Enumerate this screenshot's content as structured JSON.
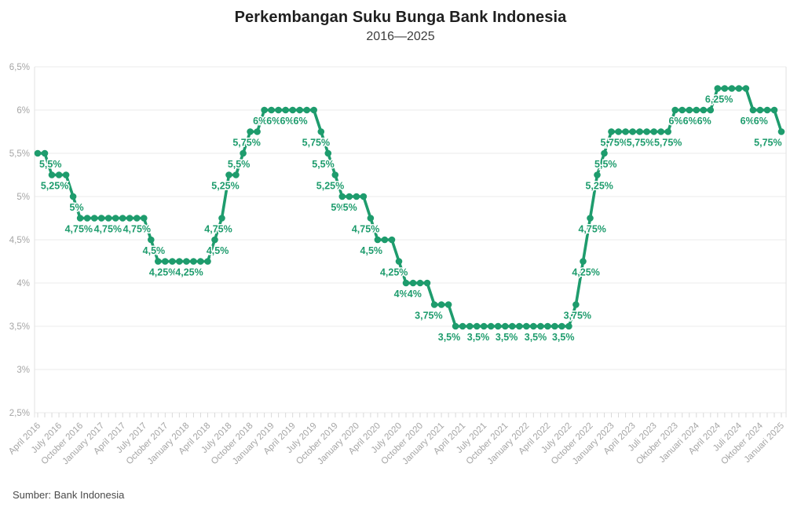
{
  "header": {
    "title": "Perkembangan Suku Bunga Bank Indonesia",
    "subtitle": "2016—2025"
  },
  "footer": {
    "source": "Sumber: Bank Indonesia"
  },
  "colors": {
    "line": "#1e9c6d",
    "data_label": "#1e9c6d",
    "axis_label": "#a5a5a5",
    "grid": "#ebebeb",
    "axis_line": "#e2e2e2",
    "tick": "#d9d9d9",
    "title": "#1f1f1f",
    "subtitle": "#3c3c3c",
    "source": "#4a4a4a",
    "background": "#ffffff"
  },
  "chart_data": {
    "type": "line",
    "title": "Perkembangan Suku Bunga Bank Indonesia",
    "subtitle": "2016—2025",
    "unit": "%",
    "ylim": [
      2.5,
      6.5
    ],
    "y_tick_values": [
      2.5,
      3,
      3.5,
      4,
      4.5,
      5,
      5.5,
      6,
      6.5
    ],
    "y_tick_labels": [
      "2,5%",
      "3%",
      "3,5%",
      "4%",
      "4,5%",
      "5%",
      "5,5%",
      "6%",
      "6,5%"
    ],
    "x_start": "April 2016",
    "x_end": "Januari 2025",
    "x_tick_every_months": 3,
    "x_tick_labels": [
      "April 2016",
      "July 2016",
      "October 2016",
      "January 2017",
      "April 2017",
      "July 2017",
      "October 2017",
      "January 2018",
      "April 2018",
      "July 2018",
      "October 2018",
      "January 2019",
      "April 2019",
      "July 2019",
      "October 2019",
      "January 2020",
      "April 2020",
      "July 2020",
      "October 2020",
      "January 2021",
      "April 2021",
      "July 2021",
      "October 2021",
      "January 2022",
      "April 2022",
      "July 2022",
      "October 2022",
      "January 2023",
      "April 2023",
      "Juli 2023",
      "Oktober 2023",
      "Januari 2024",
      "April 2024",
      "Juli 2024",
      "Oktober 2024",
      "Januari 2025"
    ],
    "grid": "horizontal",
    "legend": "none",
    "series": [
      {
        "color": "#1e9c6d",
        "values": [
          5.5,
          5.5,
          5.25,
          5.25,
          5.25,
          5,
          4.75,
          4.75,
          4.75,
          4.75,
          4.75,
          4.75,
          4.75,
          4.75,
          4.75,
          4.75,
          4.5,
          4.25,
          4.25,
          4.25,
          4.25,
          4.25,
          4.25,
          4.25,
          4.25,
          4.5,
          4.75,
          5.25,
          5.25,
          5.5,
          5.75,
          5.75,
          6,
          6,
          6,
          6,
          6,
          6,
          6,
          6,
          5.75,
          5.5,
          5.25,
          5,
          5,
          5,
          5,
          4.75,
          4.5,
          4.5,
          4.5,
          4.25,
          4,
          4,
          4,
          4,
          3.75,
          3.75,
          3.75,
          3.5,
          3.5,
          3.5,
          3.5,
          3.5,
          3.5,
          3.5,
          3.5,
          3.5,
          3.5,
          3.5,
          3.5,
          3.5,
          3.5,
          3.5,
          3.5,
          3.5,
          3.75,
          4.25,
          4.75,
          5.25,
          5.5,
          5.75,
          5.75,
          5.75,
          5.75,
          5.75,
          5.75,
          5.75,
          5.75,
          5.75,
          6,
          6,
          6,
          6,
          6,
          6,
          6.25,
          6.25,
          6.25,
          6.25,
          6.25,
          6,
          6,
          6,
          6,
          5.75
        ]
      }
    ],
    "data_labels": [
      {
        "i": 1.8,
        "v": 5.5,
        "t": "5,5%"
      },
      {
        "i": 2.4,
        "v": 5.25,
        "t": "5,25%"
      },
      {
        "i": 5.5,
        "v": 5,
        "t": "5%"
      },
      {
        "i": 5.8,
        "v": 4.75,
        "t": "4,75%"
      },
      {
        "i": 9.9,
        "v": 4.75,
        "t": "4,75%"
      },
      {
        "i": 14.0,
        "v": 4.75,
        "t": "4,75%"
      },
      {
        "i": 16.4,
        "v": 4.5,
        "t": "4,5%"
      },
      {
        "i": 17.7,
        "v": 4.25,
        "t": "4,25%"
      },
      {
        "i": 21.4,
        "v": 4.25,
        "t": "4,25%"
      },
      {
        "i": 25.4,
        "v": 4.5,
        "t": "4,5%"
      },
      {
        "i": 25.5,
        "v": 4.75,
        "t": "4,75%"
      },
      {
        "i": 26.5,
        "v": 5.25,
        "t": "5,25%"
      },
      {
        "i": 28.4,
        "v": 5.5,
        "t": "5,5%"
      },
      {
        "i": 29.5,
        "v": 5.75,
        "t": "5,75%"
      },
      {
        "i": 31.4,
        "v": 6,
        "t": "6%"
      },
      {
        "i": 33.3,
        "v": 6,
        "t": "6%"
      },
      {
        "i": 35.2,
        "v": 6,
        "t": "6%"
      },
      {
        "i": 37.1,
        "v": 6,
        "t": "6%"
      },
      {
        "i": 39.3,
        "v": 5.75,
        "t": "5,75%"
      },
      {
        "i": 40.3,
        "v": 5.5,
        "t": "5,5%"
      },
      {
        "i": 41.3,
        "v": 5.25,
        "t": "5,25%"
      },
      {
        "i": 42.4,
        "v": 5,
        "t": "5%"
      },
      {
        "i": 44.1,
        "v": 5,
        "t": "5%"
      },
      {
        "i": 46.3,
        "v": 4.75,
        "t": "4,75%"
      },
      {
        "i": 47.1,
        "v": 4.5,
        "t": "4,5%"
      },
      {
        "i": 50.3,
        "v": 4.25,
        "t": "4,25%"
      },
      {
        "i": 51.3,
        "v": 4,
        "t": "4%"
      },
      {
        "i": 53.2,
        "v": 4,
        "t": "4%"
      },
      {
        "i": 55.2,
        "v": 3.75,
        "t": "3,75%"
      },
      {
        "i": 58.1,
        "v": 3.5,
        "t": "3,5%"
      },
      {
        "i": 62.2,
        "v": 3.5,
        "t": "3,5%"
      },
      {
        "i": 66.2,
        "v": 3.5,
        "t": "3,5%"
      },
      {
        "i": 70.3,
        "v": 3.5,
        "t": "3,5%"
      },
      {
        "i": 74.2,
        "v": 3.5,
        "t": "3,5%"
      },
      {
        "i": 76.2,
        "v": 3.75,
        "t": "3,75%"
      },
      {
        "i": 77.4,
        "v": 4.25,
        "t": "4,25%"
      },
      {
        "i": 78.3,
        "v": 4.75,
        "t": "4,75%"
      },
      {
        "i": 79.3,
        "v": 5.25,
        "t": "5,25%"
      },
      {
        "i": 80.2,
        "v": 5.5,
        "t": "5,5%"
      },
      {
        "i": 81.4,
        "v": 5.75,
        "t": "5,75%"
      },
      {
        "i": 85.1,
        "v": 5.75,
        "t": "5,75%"
      },
      {
        "i": 89.0,
        "v": 5.75,
        "t": "5,75%"
      },
      {
        "i": 90.1,
        "v": 6,
        "t": "6%"
      },
      {
        "i": 92.1,
        "v": 6,
        "t": "6%"
      },
      {
        "i": 94.1,
        "v": 6,
        "t": "6%"
      },
      {
        "i": 96.2,
        "v": 6.25,
        "t": "6,25%"
      },
      {
        "i": 100.2,
        "v": 6,
        "t": "6%"
      },
      {
        "i": 102.1,
        "v": 6,
        "t": "6%"
      },
      {
        "i": 103.1,
        "v": 5.75,
        "t": "5,75%"
      }
    ]
  }
}
